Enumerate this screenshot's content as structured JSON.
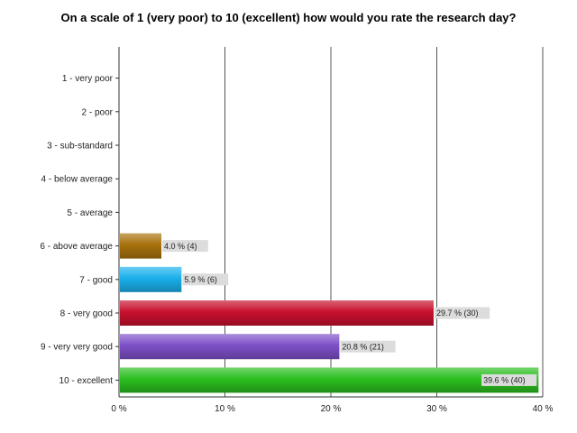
{
  "chart_data": {
    "type": "bar",
    "orientation": "horizontal",
    "title": "On a scale of 1 (very poor) to 10 (excellent) how would you rate the research day?",
    "categories": [
      "1 - very poor",
      "2 - poor",
      "3 - sub-standard",
      "4 - below average",
      "5 - average",
      "6 - above average",
      "7 - good",
      "8 - very good",
      "9 - very very good",
      "10 - excellent"
    ],
    "values": [
      0,
      0,
      0,
      0,
      0,
      4.0,
      5.9,
      29.7,
      20.8,
      39.6
    ],
    "counts": [
      0,
      0,
      0,
      0,
      0,
      4,
      6,
      30,
      21,
      40
    ],
    "data_labels": [
      "",
      "",
      "",
      "",
      "",
      "4.0 % (4)",
      "5.9 % (6)",
      "29.7 % (30)",
      "20.8 % (21)",
      "39.6 % (40)"
    ],
    "colors": [
      "#888888",
      "#888888",
      "#888888",
      "#888888",
      "#888888",
      "#a8720c",
      "#1ab0ec",
      "#c8102e",
      "#7d50c8",
      "#2bbf1f"
    ],
    "xlim": [
      0,
      40
    ],
    "xticks": [
      0,
      10,
      20,
      30,
      40
    ],
    "xtick_labels": [
      "0 %",
      "10 %",
      "20 %",
      "30 %",
      "40 %"
    ],
    "grid": true,
    "legend": "none"
  }
}
